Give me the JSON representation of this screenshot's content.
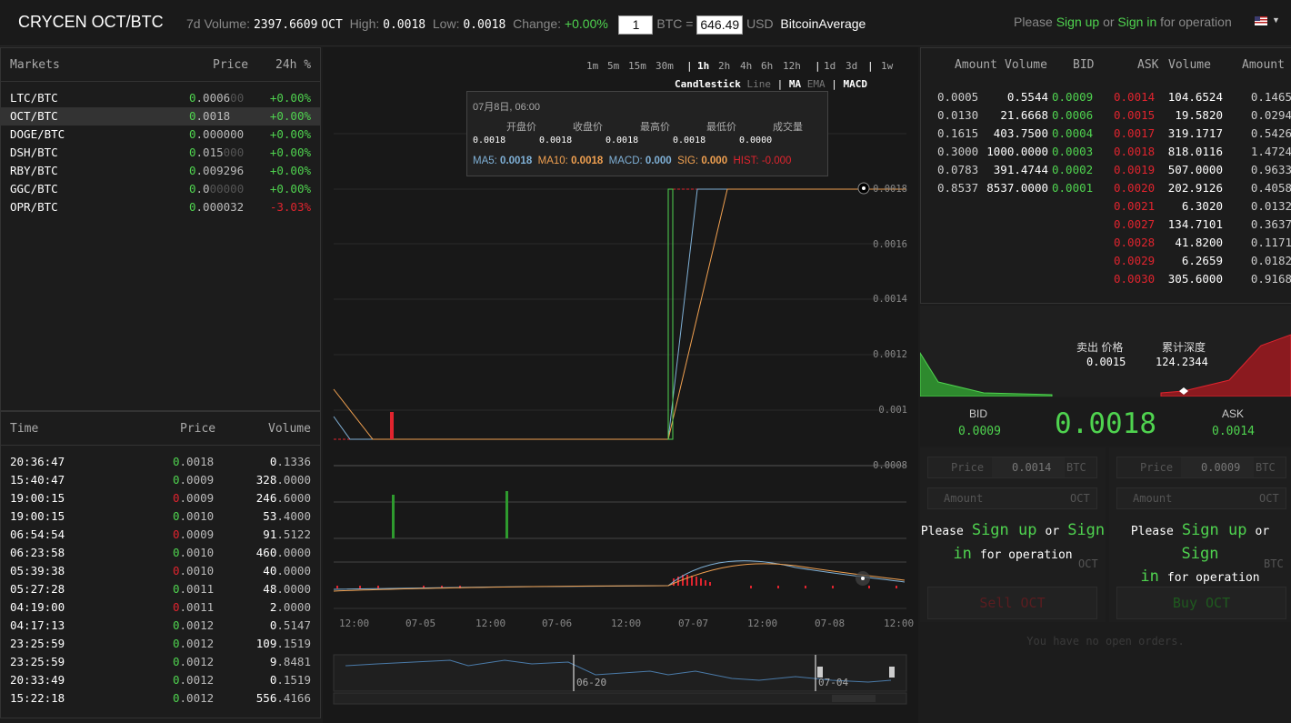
{
  "header": {
    "title": "CRYCEN OCT/BTC",
    "vol_label": "7d Volume:",
    "vol_value": "2397.6609",
    "vol_unit": "OCT",
    "high_label": "High:",
    "high_value": "0.0018",
    "low_label": "Low:",
    "low_value": "0.0018",
    "change_label": "Change:",
    "change_value": "+0.00%",
    "conv_amount": "1",
    "conv_btc": "BTC =",
    "conv_usd_value": "646.49",
    "conv_usd": "USD",
    "conv_source": "BitcoinAverage",
    "please": "Please",
    "sign_up": "Sign up",
    "or": "or",
    "sign_in": "Sign in",
    "for_operation": "for operation",
    "flag_icon": "us-flag-icon"
  },
  "markets": {
    "headers": [
      "Markets",
      "Price",
      "24h %"
    ],
    "rows": [
      {
        "pair": "LTC/BTC",
        "lead": "0",
        "price": ".0006",
        "trail": "00",
        "change": "+0.00%",
        "neg": false
      },
      {
        "pair": "OCT/BTC",
        "lead": "0",
        "price": ".0018",
        "trail": "",
        "change": "+0.00%",
        "neg": false
      },
      {
        "pair": "DOGE/BTC",
        "lead": "0",
        "price": ".000000",
        "trail": "",
        "change": "+0.00%",
        "neg": false
      },
      {
        "pair": "DSH/BTC",
        "lead": "0",
        "price": ".015",
        "trail": "000",
        "change": "+0.00%",
        "neg": false
      },
      {
        "pair": "RBY/BTC",
        "lead": "0",
        "price": ".009296",
        "trail": "",
        "change": "+0.00%",
        "neg": false
      },
      {
        "pair": "GGC/BTC",
        "lead": "0",
        "price": ".0",
        "trail": "00000",
        "change": "+0.00%",
        "neg": false
      },
      {
        "pair": "OPR/BTC",
        "lead": "0",
        "price": ".000032",
        "trail": "",
        "change": "-3.03%",
        "neg": true
      }
    ]
  },
  "trades": {
    "headers": [
      "Time",
      "Price",
      "Volume"
    ],
    "rows": [
      {
        "time": "20:36:47",
        "lead": "0",
        "price": ".0018",
        "vlead": "0",
        "vol": ".1336",
        "neg": false
      },
      {
        "time": "15:40:47",
        "lead": "0",
        "price": ".0009",
        "vlead": "328",
        "vol": ".0000",
        "neg": false
      },
      {
        "time": "19:00:15",
        "lead": "0",
        "price": ".0009",
        "vlead": "246",
        "vol": ".6000",
        "neg": true
      },
      {
        "time": "19:00:15",
        "lead": "0",
        "price": ".0010",
        "vlead": "53",
        "vol": ".4000",
        "neg": false
      },
      {
        "time": "06:54:54",
        "lead": "0",
        "price": ".0009",
        "vlead": "91",
        "vol": ".5122",
        "neg": true
      },
      {
        "time": "06:23:58",
        "lead": "0",
        "price": ".0010",
        "vlead": "460",
        "vol": ".0000",
        "neg": false
      },
      {
        "time": "05:39:38",
        "lead": "0",
        "price": ".0010",
        "vlead": "40",
        "vol": ".0000",
        "neg": true
      },
      {
        "time": "05:27:28",
        "lead": "0",
        "price": ".0011",
        "vlead": "48",
        "vol": ".0000",
        "neg": false
      },
      {
        "time": "04:19:00",
        "lead": "0",
        "price": ".0011",
        "vlead": "2",
        "vol": ".0000",
        "neg": true
      },
      {
        "time": "04:17:13",
        "lead": "0",
        "price": ".0012",
        "vlead": "0",
        "vol": ".5147",
        "neg": false
      },
      {
        "time": "23:25:59",
        "lead": "0",
        "price": ".0012",
        "vlead": "109",
        "vol": ".1519",
        "neg": false
      },
      {
        "time": "23:25:59",
        "lead": "0",
        "price": ".0012",
        "vlead": "9",
        "vol": ".8481",
        "neg": false
      },
      {
        "time": "20:33:49",
        "lead": "0",
        "price": ".0012",
        "vlead": "0",
        "vol": ".1519",
        "neg": false
      },
      {
        "time": "15:22:18",
        "lead": "0",
        "price": ".0012",
        "vlead": "556",
        "vol": ".4166",
        "neg": false
      }
    ]
  },
  "chart": {
    "timeframes": [
      "1m",
      "5m",
      "15m",
      "30m",
      "1h",
      "2h",
      "4h",
      "6h",
      "12h",
      "1d",
      "3d",
      "1w"
    ],
    "active_timeframe": "1h",
    "modes": [
      "Candlestick",
      "Line",
      "MA",
      "EMA",
      "MACD"
    ],
    "tooltip": {
      "date": "07月8日, 06:00",
      "open_label": "开盘价",
      "close_label": "收盘价",
      "high_label": "最高价",
      "low_label": "最低价",
      "volume_label": "成交量",
      "open": "0.0018",
      "close": "0.0018",
      "high": "0.0018",
      "low": "0.0018",
      "volume": "0.0000",
      "ma5_label": "MA5:",
      "ma5": "0.0018",
      "ma10_label": "MA10:",
      "ma10": "0.0018",
      "macd_label": "MACD:",
      "macd": "0.000",
      "sig_label": "SIG:",
      "sig": "0.000",
      "hist_label": "HIST:",
      "hist": "-0.000"
    },
    "y_ticks": [
      "0.0018",
      "0.0016",
      "0.0014",
      "0.0012",
      "0.001",
      "0.0008"
    ],
    "x_ticks": [
      "12:00",
      "07-05",
      "12:00",
      "07-06",
      "12:00",
      "07-07",
      "12:00",
      "07-08",
      "12:00"
    ],
    "nav_labels": [
      "06-20",
      "07-04"
    ],
    "colors": {
      "ma5": "#7fb0d6",
      "ma10": "#f0a050",
      "up": "#4fd34f",
      "down": "#e0242e"
    }
  },
  "orderbook": {
    "headers": [
      "Amount",
      "Volume",
      "BID",
      "ASK",
      "Volume",
      "Amount"
    ],
    "bids": [
      {
        "amount": "0.0005",
        "vol": "0.5544",
        "bid": "0.0009"
      },
      {
        "amount": "0.0130",
        "vol": "21.6668",
        "bid": "0.0006"
      },
      {
        "amount": "0.1615",
        "vol": "403.7500",
        "bid": "0.0004"
      },
      {
        "amount": "0.3000",
        "vol": "1000.0000",
        "bid": "0.0003"
      },
      {
        "amount": "0.0783",
        "vol": "391.4744",
        "bid": "0.0002"
      },
      {
        "amount": "0.8537",
        "vol": "8537.0000",
        "bid": "0.0001"
      }
    ],
    "asks": [
      {
        "ask": "0.0014",
        "vol": "104.6524",
        "amount": "0.1465"
      },
      {
        "ask": "0.0015",
        "vol": "19.5820",
        "amount": "0.0294"
      },
      {
        "ask": "0.0017",
        "vol": "319.1717",
        "amount": "0.5426"
      },
      {
        "ask": "0.0018",
        "vol": "818.0116",
        "amount": "1.4724"
      },
      {
        "ask": "0.0019",
        "vol": "507.0000",
        "amount": "0.9633"
      },
      {
        "ask": "0.0020",
        "vol": "202.9126",
        "amount": "0.4058"
      },
      {
        "ask": "0.0021",
        "vol": "6.3020",
        "amount": "0.0132"
      },
      {
        "ask": "0.0027",
        "vol": "134.7101",
        "amount": "0.3637"
      },
      {
        "ask": "0.0028",
        "vol": "41.8200",
        "amount": "0.1171"
      },
      {
        "ask": "0.0029",
        "vol": "6.2659",
        "amount": "0.0182"
      },
      {
        "ask": "0.0030",
        "vol": "305.6000",
        "amount": "0.9168"
      }
    ]
  },
  "depth": {
    "sell_price_label": "卖出 价格",
    "cum_depth_label": "累计深度",
    "price": "0.0015",
    "depth": "124.2344"
  },
  "ticker": {
    "bid_label": "BID",
    "bid": "0.0009",
    "last": "0.0018",
    "ask_label": "ASK",
    "ask": "0.0014"
  },
  "forms": {
    "sell": {
      "price_label": "Price",
      "price": "0.0014",
      "price_unit": "BTC",
      "amount_label": "Amount",
      "amount_unit": "OCT",
      "total_unit": "OCT",
      "button": "Sell OCT"
    },
    "buy": {
      "price_label": "Price",
      "price": "0.0009",
      "price_unit": "BTC",
      "amount_label": "Amount",
      "amount_unit": "OCT",
      "total_unit": "BTC",
      "button": "Buy OCT"
    },
    "sign_please": "Please",
    "sign_up": "Sign up",
    "sign_or": "or",
    "sign_in_a": "Sign",
    "sign_in_b": "in",
    "sign_for": "for operation"
  },
  "orders": {
    "empty": "You have no open orders."
  }
}
